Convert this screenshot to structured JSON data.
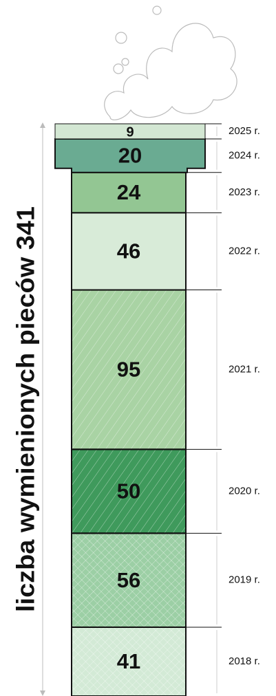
{
  "chart_data": {
    "type": "stacked-column",
    "title": "liczba wymienionych pieców 341",
    "categories": [
      "2025 r.",
      "2024 r.",
      "2023 r.",
      "2022 r.",
      "2021 r.",
      "2020 r.",
      "2019 r.",
      "2018 r."
    ],
    "values": [
      9,
      20,
      24,
      46,
      95,
      50,
      56,
      41
    ],
    "colors": [
      "#d3e7d3",
      "#6aab92",
      "#93c693",
      "#d8ebd8",
      "#a9d3a4",
      "#3f9a5c",
      "#9ccfa5",
      "#d3ead6"
    ],
    "hatch": [
      "none",
      "none",
      "none",
      "none",
      "diagonal",
      "diagonal",
      "cross",
      "cross"
    ]
  }
}
